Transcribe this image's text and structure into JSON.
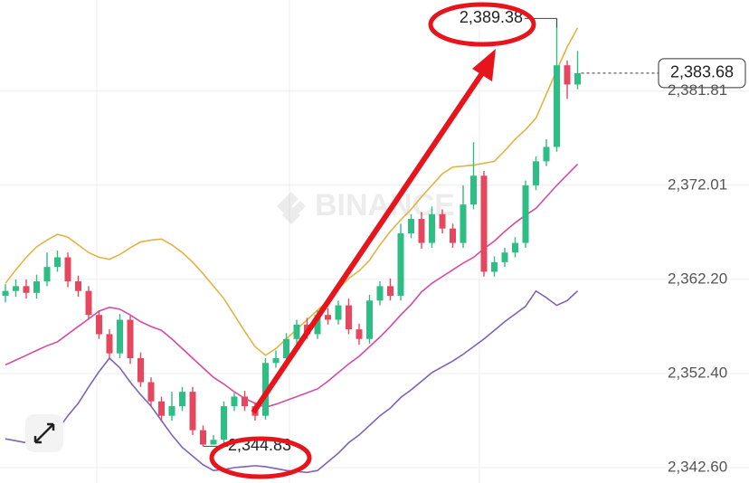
{
  "chart_data": {
    "type": "candlestick",
    "watermark": "BINANCE",
    "ylim": [
      2341.0,
      2391.3
    ],
    "yticks": [
      {
        "value": 2342.6,
        "label": "2,342.60"
      },
      {
        "value": 2352.4,
        "label": "2,352.40"
      },
      {
        "value": 2362.2,
        "label": "2,362.20"
      },
      {
        "value": 2372.01,
        "label": "2,372.01"
      },
      {
        "value": 2381.81,
        "label": "2,381.81"
      }
    ],
    "grid": true,
    "up_color": "#2ebd85",
    "down_color": "#e5485e",
    "open": [
      2360.5,
      2361.0,
      2361.5,
      2360.8,
      2362.0,
      2363.5,
      2364.5,
      2362.0,
      2361.0,
      2358.5,
      2356.5,
      2354.5,
      2358.0,
      2354.0,
      2351.5,
      2349.5,
      2348.0,
      2349.0,
      2350.5,
      2346.5,
      2345.0,
      2345.5,
      2349.0,
      2350.0,
      2349.0,
      2348.0,
      2353.5,
      2354.0,
      2356.0,
      2357.5,
      2356.5,
      2358.5,
      2358.0,
      2359.5,
      2357.0,
      2356.0,
      2360.0,
      2361.5,
      2360.5,
      2367.0,
      2368.5,
      2366.0,
      2369.0,
      2367.5,
      2366.0,
      2370.0,
      2373.0,
      2363.0,
      2364.0,
      2365.0,
      2366.0,
      2372.0,
      2374.5,
      2376.0,
      2384.5,
      2382.5
    ],
    "high": [
      2361.7,
      2362.2,
      2362.2,
      2362.7,
      2365.0,
      2365.2,
      2365.0,
      2362.6,
      2361.5,
      2359.0,
      2357.0,
      2358.6,
      2358.4,
      2354.6,
      2352.0,
      2350.0,
      2350.5,
      2351.0,
      2351.0,
      2347.0,
      2346.0,
      2349.5,
      2350.4,
      2350.6,
      2349.4,
      2354.0,
      2354.8,
      2356.6,
      2358.0,
      2358.2,
      2359.0,
      2359.2,
      2360.0,
      2360.2,
      2357.6,
      2360.6,
      2362.0,
      2362.3,
      2368.0,
      2369.0,
      2369.2,
      2369.8,
      2369.5,
      2368.0,
      2372.0,
      2376.5,
      2373.5,
      2364.6,
      2365.5,
      2366.6,
      2372.5,
      2375.0,
      2376.8,
      2389.38,
      2385.0,
      2386.0
    ],
    "low": [
      2359.8,
      2360.4,
      2360.2,
      2360.2,
      2361.5,
      2363.0,
      2361.4,
      2360.4,
      2358.0,
      2356.0,
      2354.0,
      2354.0,
      2353.4,
      2351.0,
      2349.0,
      2347.4,
      2347.5,
      2348.5,
      2346.0,
      2344.83,
      2345.0,
      2345.0,
      2348.5,
      2348.5,
      2347.5,
      2347.6,
      2353.0,
      2353.5,
      2355.5,
      2356.0,
      2356.0,
      2357.5,
      2357.5,
      2356.5,
      2355.4,
      2355.5,
      2359.5,
      2360.0,
      2360.0,
      2366.5,
      2365.4,
      2365.5,
      2367.0,
      2365.5,
      2365.5,
      2369.5,
      2362.5,
      2362.5,
      2363.5,
      2364.5,
      2365.5,
      2371.5,
      2374.0,
      2375.5,
      2381.0,
      2382.0
    ],
    "close": [
      2361.0,
      2361.5,
      2360.8,
      2362.0,
      2363.5,
      2364.5,
      2362.0,
      2361.0,
      2358.5,
      2356.5,
      2354.5,
      2358.0,
      2354.0,
      2351.5,
      2349.5,
      2348.0,
      2349.0,
      2350.5,
      2346.5,
      2345.0,
      2345.5,
      2349.0,
      2350.0,
      2349.0,
      2348.0,
      2353.5,
      2354.0,
      2356.0,
      2357.5,
      2356.5,
      2358.5,
      2358.0,
      2359.5,
      2357.0,
      2356.0,
      2360.0,
      2361.5,
      2360.5,
      2367.0,
      2368.5,
      2366.0,
      2369.0,
      2367.5,
      2366.0,
      2370.0,
      2373.0,
      2363.0,
      2364.0,
      2365.0,
      2366.0,
      2372.0,
      2374.5,
      2376.0,
      2384.5,
      2382.5,
      2383.68
    ],
    "series": [
      {
        "color": "#e3b341",
        "values": [
          2361.8,
          2363.2,
          2364.5,
          2365.6,
          2366.3,
          2366.9,
          2366.6,
          2365.8,
          2365.0,
          2364.5,
          2364.3,
          2364.8,
          2365.5,
          2366.1,
          2366.3,
          2366.4,
          2365.8,
          2365.0,
          2364.0,
          2362.8,
          2361.5,
          2360.2,
          2358.5,
          2356.8,
          2355.2,
          2354.3,
          2355.0,
          2356.0,
          2357.0,
          2358.0,
          2359.0,
          2360.0,
          2361.2,
          2362.3,
          2363.1,
          2364.2,
          2365.8,
          2367.2,
          2368.4,
          2369.5,
          2370.8,
          2372.0,
          2373.2,
          2373.9,
          2374.0,
          2374.1,
          2374.3,
          2374.5,
          2375.6,
          2376.8,
          2377.8,
          2379.0,
          2381.5,
          2384.0,
          2386.4,
          2388.4
        ]
      },
      {
        "color": "#d94aa0",
        "values": [
          2353.3,
          2353.8,
          2354.3,
          2354.8,
          2355.3,
          2355.7,
          2356.5,
          2357.3,
          2358.1,
          2358.9,
          2359.3,
          2359.1,
          2358.5,
          2357.8,
          2357.3,
          2356.9,
          2356.0,
          2355.0,
          2354.0,
          2353.0,
          2352.0,
          2351.3,
          2350.5,
          2349.8,
          2349.3,
          2348.9,
          2349.2,
          2349.6,
          2350.0,
          2350.4,
          2350.8,
          2351.6,
          2352.5,
          2353.4,
          2354.2,
          2355.2,
          2356.2,
          2357.3,
          2358.5,
          2359.6,
          2360.9,
          2361.8,
          2362.5,
          2363.2,
          2363.9,
          2364.5,
          2365.4,
          2366.2,
          2367.2,
          2368.1,
          2368.9,
          2369.6,
          2370.8,
          2372.0,
          2373.1,
          2374.2
        ]
      },
      {
        "color": "#7d62b8",
        "values": [
          2345.6,
          2345.4,
          2345.2,
          2345.1,
          2345.1,
          2346.5,
          2348.0,
          2349.3,
          2351.0,
          2352.6,
          2354.0,
          2353.0,
          2351.5,
          2350.2,
          2349.0,
          2347.5,
          2346.0,
          2344.7,
          2343.8,
          2342.9,
          2342.3,
          2342.4,
          2342.6,
          2342.7,
          2342.8,
          2342.7,
          2342.5,
          2342.3,
          2342.2,
          2342.1,
          2342.3,
          2343.2,
          2344.1,
          2345.2,
          2346.0,
          2347.0,
          2348.0,
          2348.8,
          2349.9,
          2350.7,
          2351.6,
          2352.5,
          2353.1,
          2353.7,
          2354.4,
          2355.2,
          2356.0,
          2356.9,
          2357.8,
          2358.6,
          2359.4,
          2361.0,
          2360.3,
          2359.5,
          2360.0,
          2361.0
        ]
      }
    ],
    "high_marker": {
      "value": 2389.38,
      "label": "2,389.38"
    },
    "low_marker": {
      "value": 2344.83,
      "label": "2,344.83"
    },
    "last_price": {
      "value": 2383.68,
      "label": "2,383.68"
    }
  }
}
